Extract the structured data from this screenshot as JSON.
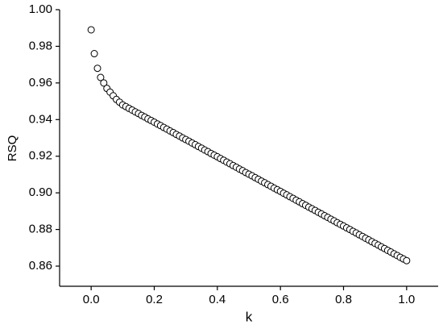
{
  "chart_data": {
    "type": "scatter",
    "x_label": "k",
    "y_label": "RSQ",
    "marker_color": "#000000",
    "x": [
      0,
      0.01,
      0.02,
      0.03,
      0.04,
      0.05,
      0.06,
      0.07,
      0.08,
      0.09,
      0.1,
      0.11,
      0.12,
      0.13,
      0.14,
      0.15,
      0.16,
      0.17,
      0.18,
      0.19,
      0.2,
      0.21,
      0.22,
      0.23,
      0.24,
      0.25,
      0.26,
      0.27,
      0.28,
      0.29,
      0.3,
      0.31,
      0.32,
      0.33,
      0.34,
      0.35,
      0.36,
      0.37,
      0.38,
      0.39,
      0.4,
      0.41,
      0.42,
      0.43,
      0.44,
      0.45,
      0.46,
      0.47,
      0.48,
      0.49,
      0.5,
      0.51,
      0.52,
      0.53,
      0.54,
      0.55,
      0.56,
      0.57,
      0.58,
      0.59,
      0.6,
      0.61,
      0.62,
      0.63,
      0.64,
      0.65,
      0.66,
      0.67,
      0.68,
      0.69,
      0.7,
      0.71,
      0.72,
      0.73,
      0.74,
      0.75,
      0.76,
      0.77,
      0.78,
      0.79,
      0.8,
      0.81,
      0.82,
      0.83,
      0.84,
      0.85,
      0.86,
      0.87,
      0.88,
      0.89,
      0.9,
      0.91,
      0.92,
      0.93,
      0.94,
      0.95,
      0.96,
      0.97,
      0.98,
      0.99,
      1
    ],
    "values": [
      0.989,
      0.976,
      0.968,
      0.963,
      0.96,
      0.957,
      0.955,
      0.953,
      0.951,
      0.9495,
      0.948,
      0.9471,
      0.9461,
      0.9452,
      0.9442,
      0.9433,
      0.9423,
      0.9414,
      0.9404,
      0.9395,
      0.9386,
      0.9376,
      0.9367,
      0.9357,
      0.9348,
      0.9338,
      0.9329,
      0.9319,
      0.931,
      0.93,
      0.9291,
      0.9282,
      0.9272,
      0.9263,
      0.9253,
      0.9244,
      0.9234,
      0.9225,
      0.9215,
      0.9206,
      0.9197,
      0.9187,
      0.9178,
      0.9168,
      0.9159,
      0.9149,
      0.914,
      0.913,
      0.9121,
      0.9111,
      0.9102,
      0.9093,
      0.9083,
      0.9074,
      0.9064,
      0.9055,
      0.9045,
      0.9036,
      0.9026,
      0.9017,
      0.9008,
      0.8998,
      0.8989,
      0.8979,
      0.897,
      0.896,
      0.8951,
      0.8941,
      0.8932,
      0.8922,
      0.8913,
      0.8904,
      0.8894,
      0.8885,
      0.8875,
      0.8866,
      0.8856,
      0.8847,
      0.8837,
      0.8828,
      0.8819,
      0.8809,
      0.88,
      0.879,
      0.8781,
      0.8771,
      0.8762,
      0.8752,
      0.8743,
      0.8733,
      0.8724,
      0.8715,
      0.8705,
      0.8696,
      0.8686,
      0.8677,
      0.8667,
      0.8658,
      0.8648,
      0.8639,
      0.863
    ],
    "xlim": [
      -0.1,
      1.1
    ],
    "xticks": [
      {
        "value": 0,
        "label": "0.0"
      },
      0.2,
      0.4,
      0.6,
      0.8,
      {
        "value": 1,
        "label": "1.0"
      }
    ],
    "ylim": [
      0.849,
      1.0
    ],
    "yticks": [
      0.86,
      0.88,
      {
        "value": 0.9,
        "label": "0.90"
      },
      0.92,
      0.94,
      0.96,
      0.98,
      {
        "value": 1,
        "label": "1.00"
      }
    ]
  }
}
